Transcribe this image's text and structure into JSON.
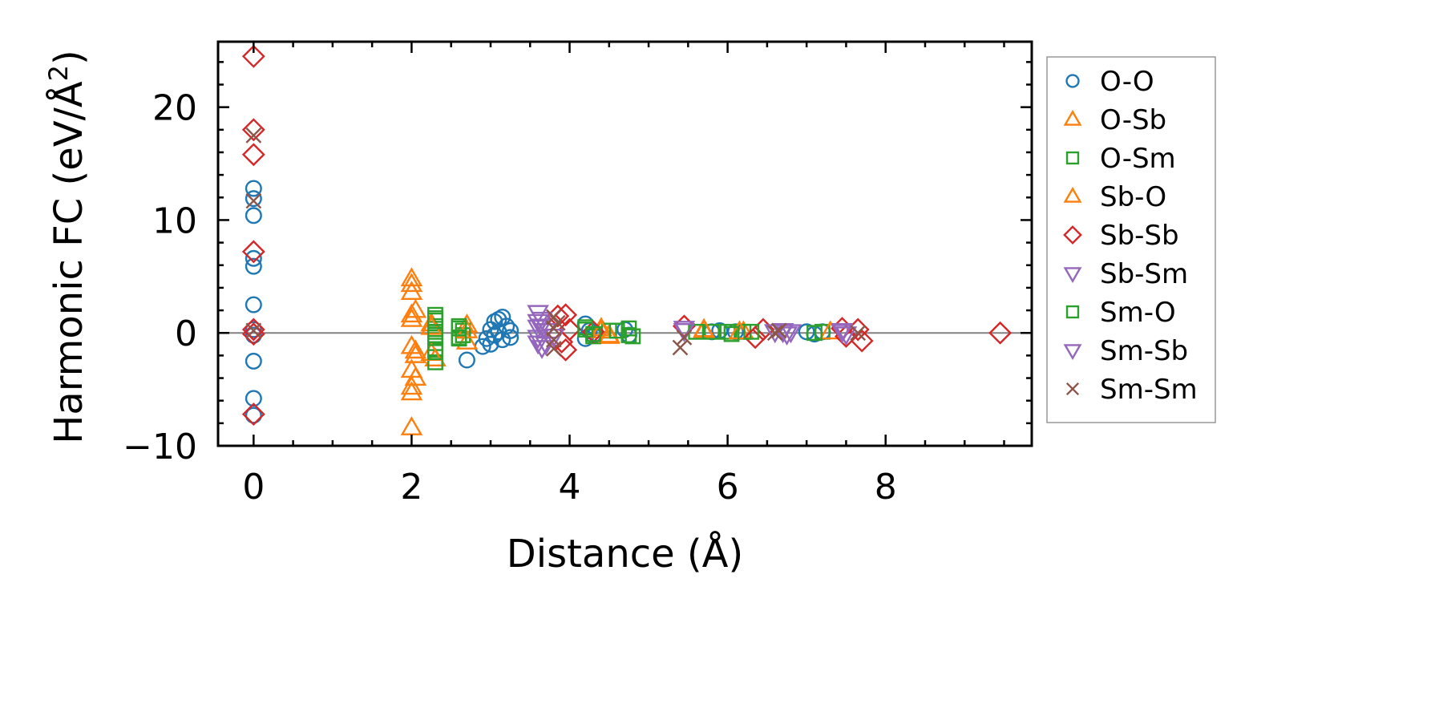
{
  "chart_data": {
    "type": "scatter",
    "title": "",
    "xlabel": "Distance (Å)",
    "ylabel": "Harmonic FC (eV/Å²)",
    "ylabel_main": "Harmonic FC (eV/Å",
    "ylabel_sup": "2",
    "ylabel_end": ")",
    "xlim": [
      -0.45,
      9.85
    ],
    "ylim": [
      -10,
      25.8
    ],
    "x_ticks": [
      0,
      2,
      4,
      6,
      8
    ],
    "x_tick_labels": [
      "0",
      "2",
      "4",
      "6",
      "8"
    ],
    "y_ticks": [
      -10,
      0,
      10,
      20
    ],
    "y_tick_labels": [
      "−10",
      "0",
      "10",
      "20"
    ],
    "zero_line": true,
    "grid": false,
    "legend_position": "outside-right",
    "series": [
      {
        "name": "O-O",
        "marker": "circle",
        "color": "#1f77b4",
        "x": [
          0,
          0,
          0,
          0,
          0,
          0,
          0,
          0,
          0,
          0,
          0,
          2.7,
          2.9,
          2.95,
          3.0,
          3.0,
          3.05,
          3.05,
          3.1,
          3.1,
          3.15,
          3.15,
          3.2,
          3.25,
          3.25,
          4.2,
          4.2,
          4.25,
          4.3,
          4.7,
          4.75,
          5.8,
          5.9,
          6.1,
          7.0,
          7.1,
          7.2
        ],
        "y": [
          12.8,
          11.9,
          10.4,
          6.6,
          5.9,
          2.5,
          0.3,
          -0.2,
          -2.5,
          -5.8,
          -7.3,
          -2.4,
          -1.2,
          -0.5,
          0.3,
          -1.0,
          1.0,
          -0.2,
          1.2,
          0.1,
          1.4,
          -0.6,
          0.6,
          0.2,
          -0.4,
          0.8,
          -0.5,
          0.2,
          -0.2,
          0.3,
          -0.2,
          0.1,
          0.2,
          0.1,
          0.1,
          -0.1,
          0.1
        ]
      },
      {
        "name": "O-Sb",
        "marker": "triangle-up",
        "color": "#ff7f0e",
        "x": [
          2.0,
          2.0,
          2.0,
          2.0,
          2.0,
          2.0,
          2.0,
          2.0,
          2.05,
          2.05,
          2.05,
          2.25,
          2.3,
          2.7,
          2.7,
          4.4,
          4.5,
          5.7,
          6.2
        ],
        "y": [
          4.8,
          3.6,
          1.6,
          -1.2,
          -3.3,
          -4.8,
          -5.3,
          -8.4,
          2.0,
          -2.0,
          -4.0,
          0.8,
          -2.3,
          0.7,
          -0.8,
          0.4,
          -0.3,
          0.2,
          0.1
        ]
      },
      {
        "name": "O-Sm",
        "marker": "square",
        "color": "#2ca02c",
        "x": [
          2.3,
          2.3,
          2.3,
          2.3,
          2.3,
          2.3,
          2.3,
          2.3,
          2.6,
          2.6,
          2.65,
          2.65,
          4.2,
          4.3,
          4.5,
          4.75,
          4.8,
          5.8,
          6.0,
          6.2,
          7.2
        ],
        "y": [
          1.6,
          1.1,
          0.6,
          0.1,
          -0.4,
          -0.9,
          -1.5,
          -2.6,
          0.6,
          -0.5,
          0.2,
          -0.2,
          0.5,
          -0.3,
          0.2,
          0.4,
          -0.3,
          0.1,
          0.1,
          0.1,
          0.1
        ]
      },
      {
        "name": "Sb-O",
        "marker": "triangle-up",
        "color": "#ff7f0e",
        "x": [
          2.0,
          2.0,
          2.05,
          2.25,
          2.25,
          2.7,
          4.4,
          4.5,
          5.7,
          6.15,
          7.3
        ],
        "y": [
          4.3,
          1.2,
          -1.6,
          0.5,
          -1.8,
          0.2,
          0.2,
          -0.2,
          0.3,
          0.1,
          0.1
        ]
      },
      {
        "name": "Sb-Sb",
        "marker": "diamond",
        "color": "#d62728",
        "x": [
          0,
          0,
          0,
          0,
          0,
          0,
          0,
          3.85,
          3.9,
          3.95,
          3.95,
          4.0,
          4.3,
          5.45,
          6.35,
          6.45,
          7.45,
          7.5,
          7.65,
          7.7,
          9.45
        ],
        "y": [
          24.5,
          18.0,
          15.8,
          7.2,
          0.3,
          -0.1,
          -7.2,
          1.5,
          -0.8,
          1.6,
          -1.5,
          0.3,
          0.1,
          0.6,
          -0.4,
          0.3,
          0.4,
          -0.3,
          0.3,
          -0.7,
          0.0
        ]
      },
      {
        "name": "Sb-Sm",
        "marker": "triangle-down",
        "color": "#9467bd",
        "x": [
          3.6,
          3.6,
          3.6,
          3.65,
          3.65,
          3.7,
          3.8,
          5.45,
          6.6,
          6.7,
          6.8,
          7.45,
          7.5
        ],
        "y": [
          1.8,
          0.5,
          -0.9,
          1.2,
          -1.3,
          0.2,
          -0.3,
          0.4,
          0.1,
          0.2,
          0.1,
          0.2,
          -0.1
        ]
      },
      {
        "name": "Sm-O",
        "marker": "square",
        "color": "#2ca02c",
        "x": [
          2.3,
          2.3,
          2.3,
          2.6,
          2.6,
          4.2,
          4.3,
          4.6,
          4.75,
          5.6,
          6.05,
          6.3,
          7.1
        ],
        "y": [
          1.3,
          -0.2,
          -1.7,
          0.4,
          -0.4,
          0.3,
          -0.1,
          0.2,
          -0.2,
          0.1,
          -0.1,
          0.1,
          0.0
        ]
      },
      {
        "name": "Sm-Sb",
        "marker": "triangle-down",
        "color": "#9467bd",
        "x": [
          3.6,
          3.6,
          3.65,
          3.7,
          5.45,
          6.7,
          6.75,
          7.45
        ],
        "y": [
          1.0,
          -0.4,
          0.6,
          -1.0,
          0.2,
          0.1,
          -0.1,
          0.1
        ]
      },
      {
        "name": "Sm-Sm",
        "marker": "x",
        "color": "#8c564b",
        "x": [
          0,
          0,
          0,
          3.8,
          3.8,
          3.8,
          3.8,
          3.85,
          5.4,
          5.45,
          6.6,
          6.65,
          7.65
        ],
        "y": [
          17.5,
          11.7,
          0.2,
          1.4,
          0.4,
          -0.6,
          -1.4,
          0.9,
          -1.3,
          -0.4,
          0.0,
          0.2,
          0.0
        ]
      }
    ]
  }
}
